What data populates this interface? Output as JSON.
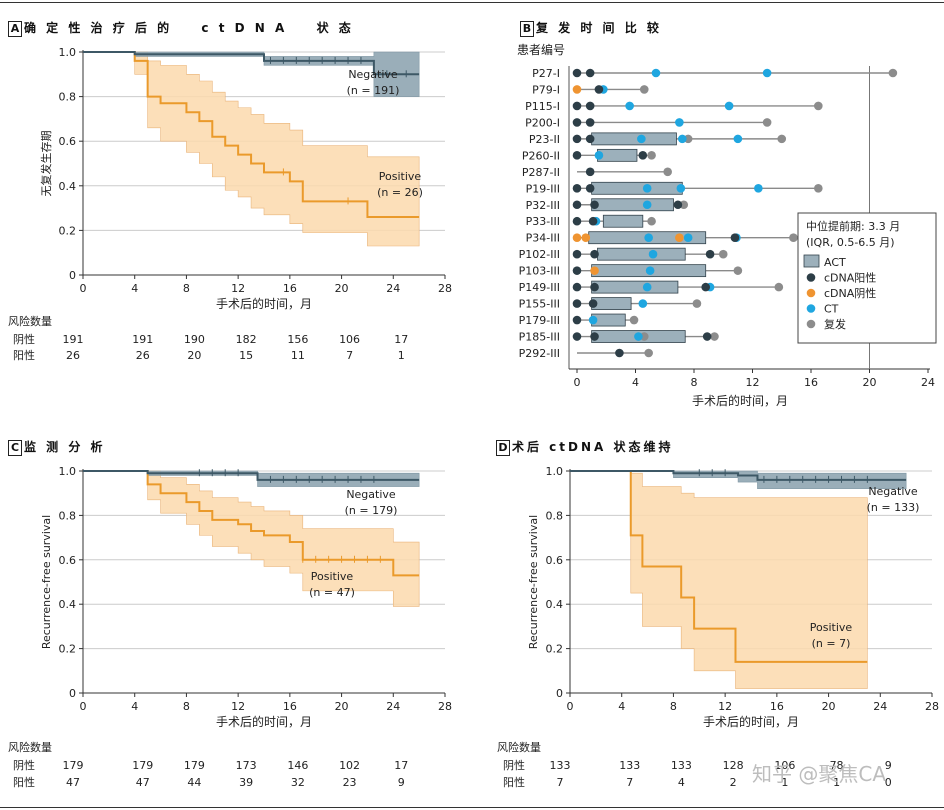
{
  "watermark": "知乎 @聚焦CA",
  "colors": {
    "negative": "#3d5866",
    "negative_fill": "#8fa5b1",
    "positive": "#ea9a2b",
    "positive_fill": "#fcd9ad",
    "grid": "#cccccc",
    "act": "#9cb0bb",
    "ctdna_pos": "#2d3e47",
    "ctdna_neg": "#ef9431",
    "ct": "#1fa6e0",
    "relapse": "#8c8c8c"
  },
  "chart_data": [
    {
      "id": "A",
      "type": "line",
      "panel_letter": "A",
      "title": "确 定 性 治 疗 后 的 　 c t D N A 　 状 态",
      "xlabel": "手术后的时间，月",
      "ylabel": "无复发生存期",
      "xlim": [
        0,
        28
      ],
      "ylim": [
        0,
        1.0
      ],
      "xticks": [
        0,
        4,
        8,
        12,
        16,
        20,
        24,
        28
      ],
      "yticks": [
        0,
        0.2,
        0.4,
        0.6,
        0.8,
        1.0
      ],
      "ytick_labels": [
        "0",
        "0.2",
        "0.4",
        "0.6",
        "0.8",
        "1.0"
      ],
      "series": [
        {
          "name": "Negative",
          "n_label": "(n = 191)",
          "x": [
            0,
            4,
            4,
            14,
            14,
            22.5,
            22.5,
            26
          ],
          "y": [
            1,
            1,
            0.99,
            0.99,
            0.96,
            0.96,
            0.9,
            0.9
          ],
          "ci_lower": [
            1,
            1,
            0.98,
            0.98,
            0.94,
            0.94,
            0.8,
            0.8
          ],
          "ci_upper": [
            1,
            1,
            1,
            1,
            0.98,
            0.98,
            1,
            1
          ],
          "censor_x": [
            14.5,
            15.5,
            16.5,
            17.5,
            18.5,
            19.5,
            20.5,
            21.5,
            23.5,
            25
          ]
        },
        {
          "name": "Positive",
          "n_label": "(n = 26)",
          "x": [
            0,
            4,
            4,
            5,
            5,
            6,
            6,
            8,
            8,
            9,
            9,
            10,
            10,
            11,
            11,
            12,
            12,
            13,
            13,
            14,
            14,
            16,
            16,
            17,
            17,
            22,
            22,
            26
          ],
          "y": [
            1,
            1,
            0.96,
            0.96,
            0.8,
            0.8,
            0.77,
            0.77,
            0.73,
            0.73,
            0.69,
            0.69,
            0.62,
            0.62,
            0.58,
            0.58,
            0.54,
            0.54,
            0.5,
            0.5,
            0.46,
            0.46,
            0.42,
            0.42,
            0.33,
            0.33,
            0.26,
            0.26
          ],
          "ci_lower": [
            1,
            1,
            0.9,
            0.9,
            0.66,
            0.66,
            0.6,
            0.6,
            0.55,
            0.55,
            0.5,
            0.5,
            0.44,
            0.44,
            0.38,
            0.38,
            0.35,
            0.35,
            0.3,
            0.3,
            0.27,
            0.27,
            0.23,
            0.23,
            0.19,
            0.19,
            0.13,
            0.13
          ],
          "ci_upper": [
            1,
            1,
            1,
            1,
            0.96,
            0.96,
            0.94,
            0.94,
            0.9,
            0.9,
            0.87,
            0.87,
            0.82,
            0.82,
            0.78,
            0.78,
            0.75,
            0.75,
            0.72,
            0.72,
            0.68,
            0.68,
            0.65,
            0.65,
            0.58,
            0.58,
            0.53,
            0.53
          ],
          "censor_x": [
            15.5,
            20.5
          ]
        }
      ],
      "risk_table": {
        "heading": "风险数量",
        "times": [
          0,
          4,
          8,
          12,
          16,
          20,
          24
        ],
        "rows": [
          {
            "label": "阴性",
            "values": [
              "191",
              "191",
              "190",
              "182",
              "156",
              "106",
              "17"
            ]
          },
          {
            "label": "阳性",
            "values": [
              "26",
              "26",
              "20",
              "15",
              "11",
              "7",
              "1"
            ]
          }
        ]
      }
    },
    {
      "id": "B",
      "type": "swimmer",
      "panel_letter": "B",
      "title": "复 发 时 间 比 较",
      "ylabel": "患者编号",
      "xlabel": "手术后的时间，月",
      "xlim": [
        0,
        24
      ],
      "xticks": [
        0,
        4,
        8,
        12,
        16,
        20,
        24
      ],
      "reference_line_x": 20,
      "patients": [
        {
          "id": "P27-I",
          "line_end": 21.6,
          "act": null,
          "ctdna_pos": [
            0,
            0.9
          ],
          "ctdna_neg": [],
          "ct": [
            5.4,
            13
          ],
          "relapse": [
            21.6
          ]
        },
        {
          "id": "P79-I",
          "line_end": 4.6,
          "act": null,
          "ctdna_pos": [
            1.5
          ],
          "ctdna_neg": [
            0
          ],
          "ct": [
            1.8
          ],
          "relapse": [
            4.6
          ]
        },
        {
          "id": "P115-I",
          "line_end": 16.5,
          "act": null,
          "ctdna_pos": [
            0,
            0.9
          ],
          "ctdna_neg": [],
          "ct": [
            3.6,
            10.4
          ],
          "relapse": [
            16.5
          ]
        },
        {
          "id": "P200-I",
          "line_end": 13,
          "act": null,
          "ctdna_pos": [
            0,
            0.9
          ],
          "ctdna_neg": [],
          "ct": [
            7
          ],
          "relapse": [
            13
          ]
        },
        {
          "id": "P23-II",
          "line_end": 14,
          "act": [
            1,
            6.8
          ],
          "ctdna_pos": [
            0,
            0.9
          ],
          "ctdna_neg": [],
          "ct": [
            4.4,
            7.2,
            11
          ],
          "relapse": [
            7.6,
            14
          ]
        },
        {
          "id": "P260-II",
          "line_end": 5.1,
          "act": [
            1.4,
            4.1
          ],
          "ctdna_pos": [
            0,
            4.5
          ],
          "ctdna_neg": [],
          "ct": [
            1.5
          ],
          "relapse": [
            5.1
          ]
        },
        {
          "id": "P287-II",
          "line_end": 6.2,
          "act": null,
          "ctdna_pos": [
            0.9
          ],
          "ctdna_neg": [],
          "ct": [],
          "relapse": [
            6.2
          ]
        },
        {
          "id": "P19-III",
          "line_end": 16.5,
          "act": [
            1,
            7.2
          ],
          "ctdna_pos": [
            0,
            0.9
          ],
          "ctdna_neg": [],
          "ct": [
            4.8,
            7.1,
            12.4
          ],
          "relapse": [
            16.5
          ]
        },
        {
          "id": "P32-III",
          "line_end": 7.3,
          "act": [
            1,
            6.6
          ],
          "ctdna_pos": [
            0,
            1.2,
            6.9
          ],
          "ctdna_neg": [],
          "ct": [
            4.8
          ],
          "relapse": [
            7.3
          ]
        },
        {
          "id": "P33-III",
          "line_end": 5.1,
          "act": [
            1.8,
            4.5
          ],
          "ctdna_pos": [
            0,
            1.1
          ],
          "ctdna_neg": [],
          "ct": [
            1.3
          ],
          "relapse": [
            5.1
          ]
        },
        {
          "id": "P34-III",
          "line_end": 14.8,
          "act": [
            0.8,
            8.8
          ],
          "ctdna_pos": [
            10.8
          ],
          "ctdna_neg": [
            0,
            0.6,
            7
          ],
          "ct": [
            4.9,
            7.6,
            10.9
          ],
          "relapse": [
            14.8
          ]
        },
        {
          "id": "P102-III",
          "line_end": 10,
          "act": [
            1.4,
            7.4
          ],
          "ctdna_pos": [
            0,
            1.2,
            9.1
          ],
          "ctdna_neg": [],
          "ct": [
            5.2
          ],
          "relapse": [
            10
          ]
        },
        {
          "id": "P103-III",
          "line_end": 11,
          "act": [
            1,
            8.8
          ],
          "ctdna_pos": [
            0
          ],
          "ctdna_neg": [
            1.2
          ],
          "ct": [
            5
          ],
          "relapse": [
            11
          ]
        },
        {
          "id": "P149-III",
          "line_end": 13.8,
          "act": [
            1,
            6.9
          ],
          "ctdna_pos": [
            0,
            1.2,
            8.8
          ],
          "ctdna_neg": [],
          "ct": [
            4.8,
            9.1
          ],
          "relapse": [
            13.8
          ]
        },
        {
          "id": "P155-III",
          "line_end": 8.2,
          "act": [
            1,
            3.7
          ],
          "ctdna_pos": [
            0,
            1.1
          ],
          "ctdna_neg": [],
          "ct": [
            4.5
          ],
          "relapse": [
            8.2
          ]
        },
        {
          "id": "P179-III",
          "line_end": 3.9,
          "act": [
            1,
            3.3
          ],
          "ctdna_pos": [
            0
          ],
          "ctdna_neg": [],
          "ct": [
            1.1
          ],
          "relapse": [
            3.9
          ]
        },
        {
          "id": "P185-III",
          "line_end": 9.4,
          "act": [
            1,
            7.4
          ],
          "ctdna_pos": [
            0,
            1.2,
            8.9
          ],
          "ctdna_neg": [],
          "ct": [
            4.2
          ],
          "relapse": [
            4.6,
            9.4
          ]
        },
        {
          "id": "P292-III",
          "line_end": 4.9,
          "act": null,
          "ctdna_pos": [
            2.9
          ],
          "ctdna_neg": [],
          "ct": [],
          "relapse": [
            4.9
          ]
        }
      ],
      "legend": {
        "title_line1": "中位提前期: 3.3 月",
        "title_line2": "(IQR, 0.5-6.5 月)",
        "items": [
          {
            "key": "act",
            "label": "ACT"
          },
          {
            "key": "ctdna_pos",
            "label": "cDNA阳性"
          },
          {
            "key": "ctdna_neg",
            "label": "cDNA阴性"
          },
          {
            "key": "ct",
            "label": "CT"
          },
          {
            "key": "relapse",
            "label": "复发"
          }
        ]
      }
    },
    {
      "id": "C",
      "type": "line",
      "panel_letter": "C",
      "title": "监 测 分 析",
      "xlabel": "手术后的时间，月",
      "ylabel": "Recurrence-free survival",
      "xlim": [
        0,
        28
      ],
      "ylim": [
        0,
        1.0
      ],
      "xticks": [
        0,
        4,
        8,
        12,
        16,
        20,
        24,
        28
      ],
      "yticks": [
        0,
        0.2,
        0.4,
        0.6,
        0.8,
        1.0
      ],
      "ytick_labels": [
        "0",
        "0.2",
        "0.4",
        "0.6",
        "0.8",
        "1.0"
      ],
      "series": [
        {
          "name": "Negative",
          "n_label": "(n = 179)",
          "x": [
            0,
            5,
            5,
            13.5,
            13.5,
            26
          ],
          "y": [
            1,
            1,
            0.99,
            0.99,
            0.96,
            0.96
          ],
          "ci_lower": [
            1,
            1,
            0.98,
            0.98,
            0.93,
            0.93
          ],
          "ci_upper": [
            1,
            1,
            1,
            1,
            0.99,
            0.99
          ],
          "censor_x": [
            9,
            10,
            11,
            12,
            14.5,
            15.5,
            16.5,
            17.5,
            18.5,
            19.5,
            20.5,
            21.5,
            22.5
          ]
        },
        {
          "name": "Positive",
          "n_label": "(n = 47)",
          "x": [
            0,
            5,
            5,
            6,
            6,
            8,
            8,
            9,
            9,
            10,
            10,
            12,
            12,
            13,
            13,
            14,
            14,
            16,
            16,
            17,
            17,
            24,
            24,
            26
          ],
          "y": [
            1,
            1,
            0.94,
            0.94,
            0.9,
            0.9,
            0.86,
            0.86,
            0.82,
            0.82,
            0.78,
            0.78,
            0.76,
            0.76,
            0.73,
            0.73,
            0.71,
            0.71,
            0.68,
            0.68,
            0.6,
            0.6,
            0.53,
            0.53
          ],
          "ci_lower": [
            1,
            1,
            0.87,
            0.87,
            0.81,
            0.81,
            0.76,
            0.76,
            0.71,
            0.71,
            0.66,
            0.66,
            0.63,
            0.63,
            0.6,
            0.6,
            0.57,
            0.57,
            0.54,
            0.54,
            0.46,
            0.46,
            0.39,
            0.39
          ],
          "ci_upper": [
            1,
            1,
            1,
            1,
            0.97,
            0.97,
            0.94,
            0.94,
            0.91,
            0.91,
            0.88,
            0.88,
            0.86,
            0.86,
            0.84,
            0.84,
            0.82,
            0.82,
            0.8,
            0.8,
            0.74,
            0.74,
            0.68,
            0.68
          ],
          "censor_x": [
            17,
            18,
            19,
            20,
            21,
            22,
            23
          ]
        }
      ],
      "risk_table": {
        "heading": "风险数量",
        "times": [
          0,
          4,
          8,
          12,
          16,
          20,
          24
        ],
        "rows": [
          {
            "label": "阴性",
            "values": [
              "179",
              "179",
              "179",
              "173",
              "146",
              "102",
              "17"
            ]
          },
          {
            "label": "阳性",
            "values": [
              "47",
              "47",
              "44",
              "39",
              "32",
              "23",
              "9"
            ]
          }
        ]
      }
    },
    {
      "id": "D",
      "type": "line",
      "panel_letter": "D",
      "title": "术后 ctDNA 状态维持",
      "xlabel": "手术后的时间，月",
      "ylabel": "Recurrence-free survival",
      "xlim": [
        0,
        28
      ],
      "ylim": [
        0,
        1.0
      ],
      "xticks": [
        0,
        4,
        8,
        12,
        16,
        20,
        24,
        28
      ],
      "yticks": [
        0,
        0.2,
        0.4,
        0.6,
        0.8,
        1.0
      ],
      "ytick_labels": [
        "0",
        "0.2",
        "0.4",
        "0.6",
        "0.8",
        "1.0"
      ],
      "series": [
        {
          "name": "Negative",
          "n_label": "(n = 133)",
          "x": [
            0,
            8,
            8,
            13,
            13,
            14.5,
            14.5,
            26
          ],
          "y": [
            1,
            1,
            0.99,
            0.99,
            0.98,
            0.98,
            0.96,
            0.96
          ],
          "ci_lower": [
            1,
            1,
            0.97,
            0.97,
            0.95,
            0.95,
            0.92,
            0.92
          ],
          "ci_upper": [
            1,
            1,
            1,
            1,
            1,
            1,
            0.99,
            0.99
          ],
          "censor_x": [
            10,
            11,
            12,
            15,
            16,
            17,
            18,
            19,
            20,
            21,
            22,
            23
          ]
        },
        {
          "name": "Positive",
          "n_label": "(n = 7)",
          "x": [
            0,
            4.7,
            4.7,
            5.6,
            5.6,
            8.6,
            8.6,
            9.6,
            9.6,
            12.8,
            12.8,
            23
          ],
          "y": [
            1,
            1,
            0.71,
            0.71,
            0.57,
            0.57,
            0.43,
            0.43,
            0.29,
            0.29,
            0.14,
            0.14
          ],
          "ci_lower": [
            1,
            1,
            0.45,
            0.45,
            0.3,
            0.3,
            0.2,
            0.2,
            0.1,
            0.1,
            0.02,
            0.02
          ],
          "ci_upper": [
            1,
            1,
            0.99,
            0.99,
            0.93,
            0.93,
            0.9,
            0.9,
            0.88,
            0.88,
            0.88,
            0.88
          ],
          "censor_x": []
        }
      ],
      "risk_table": {
        "heading": "风险数量",
        "times": [
          0,
          4,
          8,
          12,
          16,
          20,
          24
        ],
        "rows": [
          {
            "label": "阴性",
            "values": [
              "133",
              "133",
              "133",
              "128",
              "106",
              "78",
              "9"
            ]
          },
          {
            "label": "阳性",
            "values": [
              "7",
              "7",
              "4",
              "2",
              "1",
              "1",
              "0"
            ]
          }
        ]
      }
    }
  ]
}
